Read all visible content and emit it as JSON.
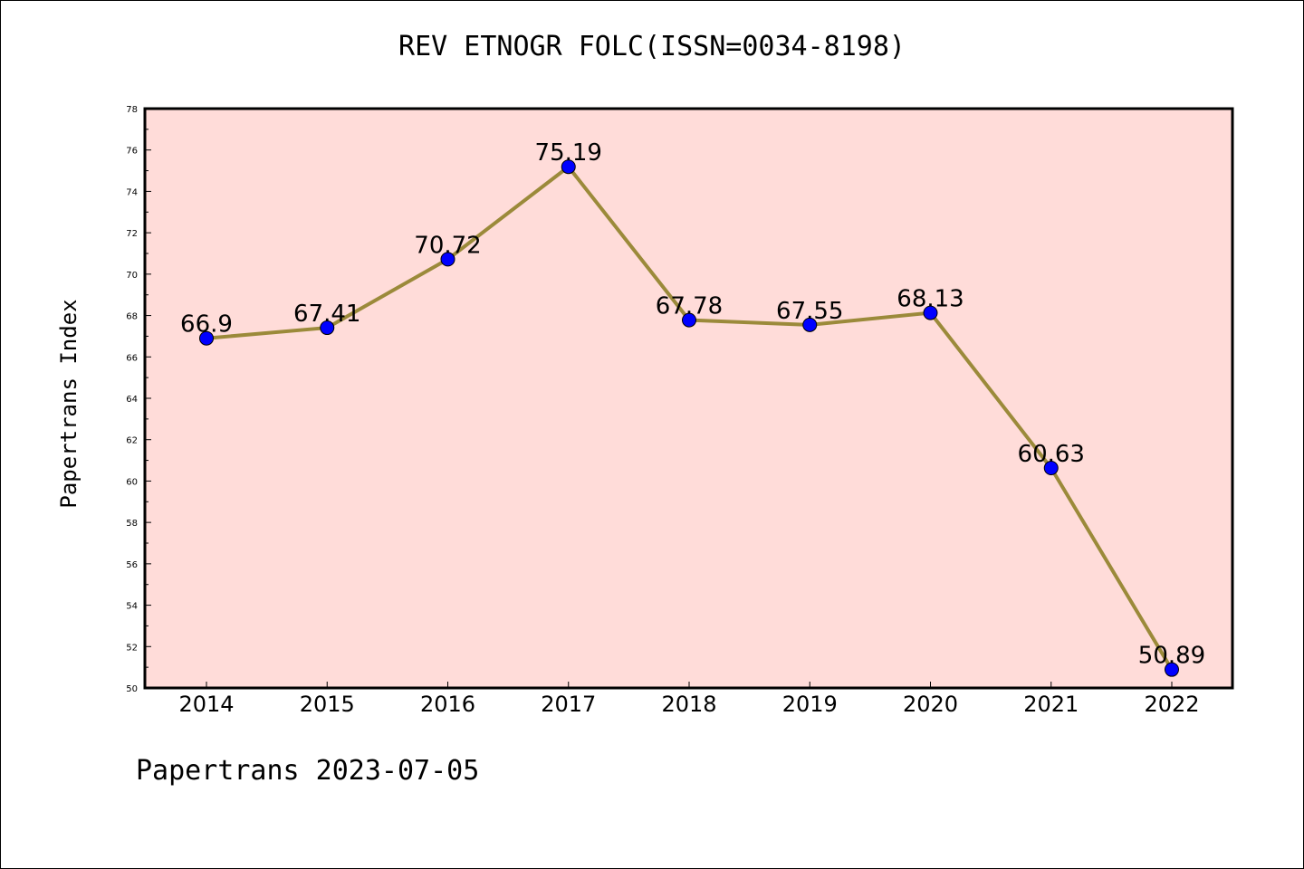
{
  "title": "REV ETNOGR FOLC(ISSN=0034-8198)",
  "footer": "Papertrans 2023-07-05",
  "colors": {
    "plot_background": "#ffdcd9",
    "line": "#9b8a3a",
    "marker": "#0000ff"
  },
  "chart_data": {
    "type": "line",
    "title": "REV ETNOGR FOLC(ISSN=0034-8198)",
    "xlabel": "",
    "ylabel": "Papertrans Index",
    "categories": [
      "2014",
      "2015",
      "2016",
      "2017",
      "2018",
      "2019",
      "2020",
      "2021",
      "2022"
    ],
    "values": [
      66.9,
      67.41,
      70.72,
      75.19,
      67.78,
      67.55,
      68.13,
      60.63,
      50.89
    ],
    "data_labels": [
      "66.9",
      "67.41",
      "70.72",
      "75.19",
      "67.78",
      "67.55",
      "68.13",
      "60.63",
      "50.89"
    ],
    "ylim": [
      50,
      78
    ],
    "yticks": [
      "50",
      "52",
      "54",
      "56",
      "58",
      "60",
      "62",
      "64",
      "66",
      "68",
      "70",
      "72",
      "74",
      "76",
      "78"
    ],
    "grid": false,
    "legend": "none"
  }
}
